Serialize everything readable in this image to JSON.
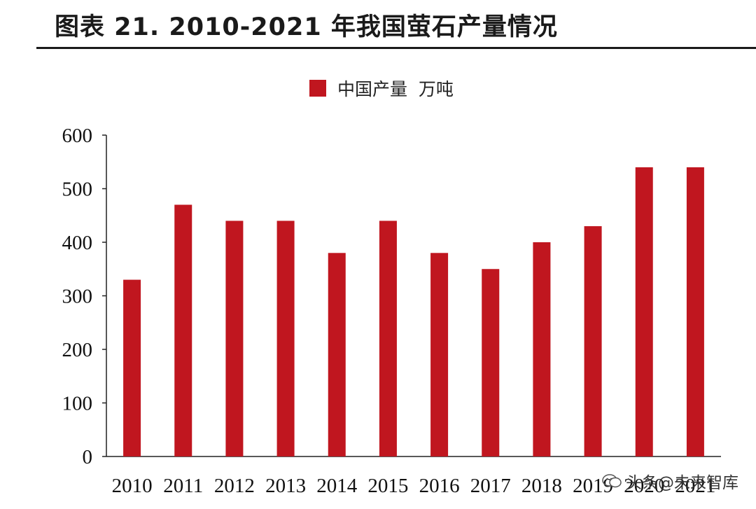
{
  "header": {
    "title": "图表 21. 2010-2021 年我国萤石产量情况"
  },
  "legend": {
    "label": "中国产量  万吨"
  },
  "watermark": {
    "text": "头条@未来智库"
  },
  "colors": {
    "bar": "#c0161f",
    "axis": "#222222"
  },
  "chart_data": {
    "type": "bar",
    "title": "图表 21. 2010-2021 年我国萤石产量情况",
    "xlabel": "",
    "ylabel": "",
    "categories": [
      "2010",
      "2011",
      "2012",
      "2013",
      "2014",
      "2015",
      "2016",
      "2017",
      "2018",
      "2019",
      "2020",
      "2021"
    ],
    "series": [
      {
        "name": "中国产量  万吨",
        "values": [
          330,
          470,
          440,
          440,
          380,
          440,
          380,
          350,
          400,
          430,
          540,
          540
        ]
      }
    ],
    "ylim": [
      0,
      600
    ],
    "yticks": [
      0,
      100,
      200,
      300,
      400,
      500,
      600
    ],
    "grid": false,
    "legend_position": "top-center"
  }
}
